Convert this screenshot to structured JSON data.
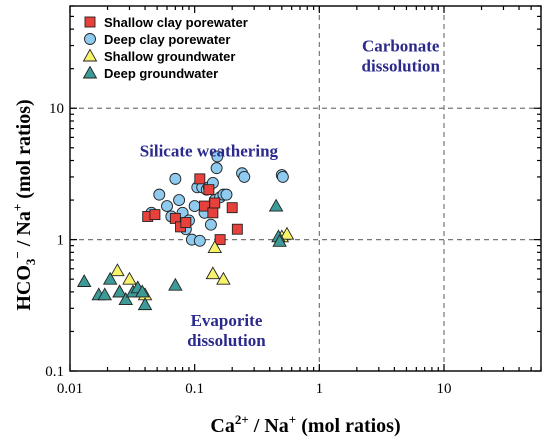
{
  "chart_data": {
    "type": "scatter",
    "xscale": "log",
    "yscale": "log",
    "xlim": [
      0.01,
      60
    ],
    "ylim": [
      0.1,
      60
    ],
    "xticks": [
      0.01,
      0.1,
      1,
      10
    ],
    "yticks": [
      0.1,
      1,
      10
    ],
    "x_tick_labels": [
      "0.01",
      "0.1",
      "1",
      "10"
    ],
    "y_tick_labels": [
      "0.1",
      "1",
      "10"
    ],
    "reference_lines": {
      "x": [
        1,
        10
      ],
      "y": [
        1,
        10
      ],
      "style": "dashed"
    },
    "xlabel": {
      "base": "Ca",
      "sup": "2+",
      "rest": " / Na",
      "sup2": "+",
      "tail": "  (mol ratios)"
    },
    "ylabel": {
      "base": "HCO",
      "sub": "3",
      "sup": "−",
      "rest": " / Na",
      "sup2": "+",
      "tail": "  (mol ratios)"
    },
    "annotations": [
      {
        "lines": [
          "Carbonate",
          "dissolution"
        ],
        "x": 4.5,
        "y": 27
      },
      {
        "lines": [
          "Silicate weathering"
        ],
        "x": 0.13,
        "y": 4.3
      },
      {
        "lines": [
          "Evaporite",
          "dissolution"
        ],
        "x": 0.18,
        "y": 0.22
      }
    ],
    "legend_position": "top-left",
    "series": [
      {
        "name": "Shallow clay porewater",
        "marker": "square",
        "color": "#e8413c",
        "points": [
          [
            0.042,
            1.5
          ],
          [
            0.048,
            1.55
          ],
          [
            0.07,
            1.45
          ],
          [
            0.077,
            1.25
          ],
          [
            0.085,
            1.35
          ],
          [
            0.11,
            2.9
          ],
          [
            0.12,
            1.8
          ],
          [
            0.13,
            2.4
          ],
          [
            0.14,
            1.6
          ],
          [
            0.145,
            1.9
          ],
          [
            0.16,
            1.0
          ],
          [
            0.2,
            1.75
          ],
          [
            0.22,
            1.2
          ]
        ]
      },
      {
        "name": "Deep clay porewater",
        "marker": "circle",
        "color": "#8ecbef",
        "points": [
          [
            0.045,
            1.6
          ],
          [
            0.052,
            2.2
          ],
          [
            0.06,
            1.8
          ],
          [
            0.065,
            1.5
          ],
          [
            0.07,
            2.9
          ],
          [
            0.075,
            2.0
          ],
          [
            0.08,
            1.6
          ],
          [
            0.085,
            1.2
          ],
          [
            0.09,
            1.4
          ],
          [
            0.095,
            1.0
          ],
          [
            0.1,
            1.8
          ],
          [
            0.105,
            2.5
          ],
          [
            0.11,
            0.98
          ],
          [
            0.115,
            2.5
          ],
          [
            0.12,
            1.6
          ],
          [
            0.125,
            2.4
          ],
          [
            0.13,
            2.5
          ],
          [
            0.135,
            1.3
          ],
          [
            0.14,
            2.7
          ],
          [
            0.145,
            2.0
          ],
          [
            0.15,
            3.5
          ],
          [
            0.152,
            4.3
          ],
          [
            0.16,
            2.1
          ],
          [
            0.17,
            2.2
          ],
          [
            0.18,
            2.2
          ],
          [
            0.24,
            3.2
          ],
          [
            0.25,
            3.0
          ],
          [
            0.5,
            3.1
          ],
          [
            0.51,
            3.0
          ]
        ]
      },
      {
        "name": "Shallow groundwater",
        "marker": "triangle",
        "color": "#f7f36a",
        "points": [
          [
            0.024,
            0.58
          ],
          [
            0.025,
            0.4
          ],
          [
            0.03,
            0.5
          ],
          [
            0.035,
            0.4
          ],
          [
            0.04,
            0.38
          ],
          [
            0.14,
            0.55
          ],
          [
            0.145,
            0.87
          ],
          [
            0.17,
            0.5
          ],
          [
            0.5,
            1.05
          ],
          [
            0.55,
            1.1
          ]
        ]
      },
      {
        "name": "Deep groundwater",
        "marker": "triangle",
        "color": "#3c9a97",
        "points": [
          [
            0.013,
            0.48
          ],
          [
            0.017,
            0.38
          ],
          [
            0.019,
            0.38
          ],
          [
            0.021,
            0.5
          ],
          [
            0.025,
            0.4
          ],
          [
            0.028,
            0.35
          ],
          [
            0.032,
            0.4
          ],
          [
            0.035,
            0.43
          ],
          [
            0.038,
            0.4
          ],
          [
            0.04,
            0.32
          ],
          [
            0.07,
            0.45
          ],
          [
            0.45,
            1.8
          ],
          [
            0.47,
            1.05
          ],
          [
            0.48,
            0.97
          ]
        ]
      }
    ]
  }
}
